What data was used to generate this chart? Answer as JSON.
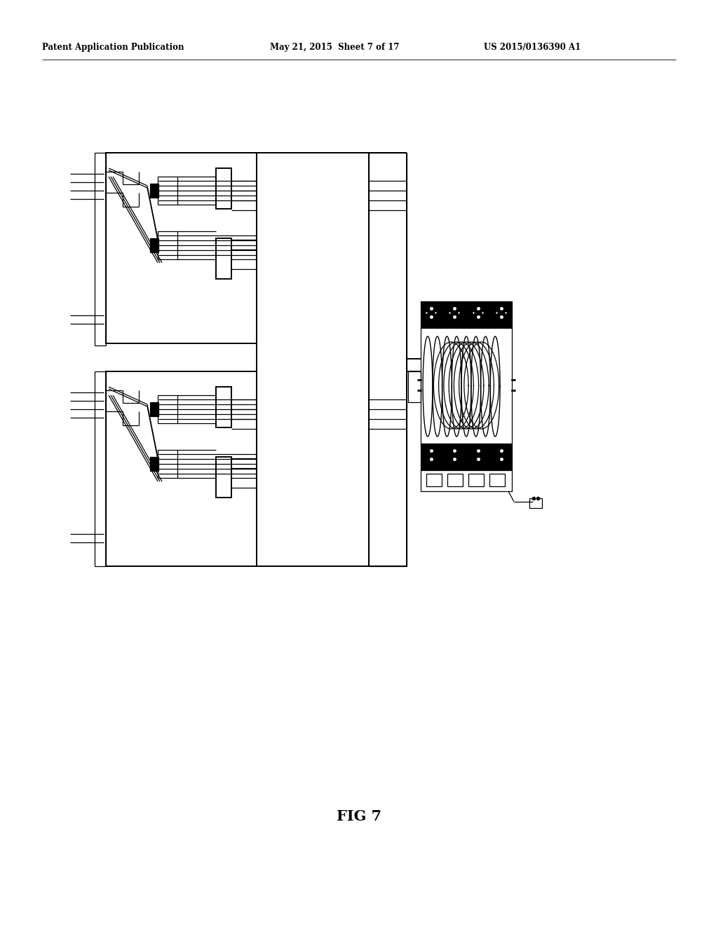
{
  "bg_color": "#ffffff",
  "title": "FIG 7",
  "header_left": "Patent Application Publication",
  "header_mid": "May 21, 2015  Sheet 7 of 17",
  "header_right": "US 2015/0136390 A1"
}
